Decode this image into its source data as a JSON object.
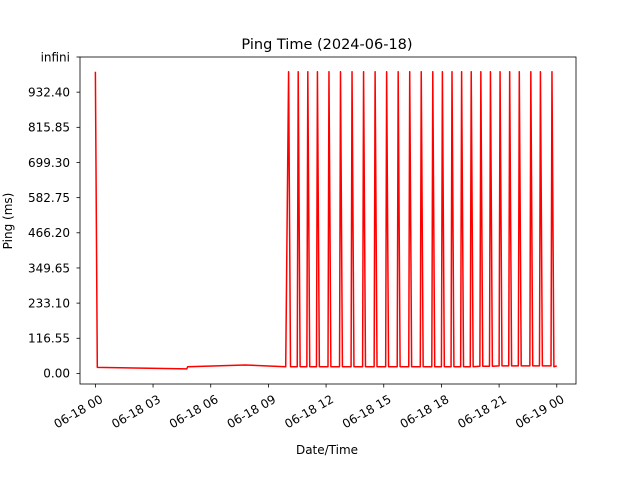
{
  "chart_data": {
    "type": "line",
    "title": "Ping Time (2024-06-18)",
    "xlabel": "Date/Time",
    "ylabel": "Ping (ms)",
    "y_ticks": [
      {
        "value": 0,
        "label": "0.00"
      },
      {
        "value": 116.55,
        "label": "116.55"
      },
      {
        "value": 233.1,
        "label": "233.10"
      },
      {
        "value": 349.65,
        "label": "349.65"
      },
      {
        "value": 466.2,
        "label": "466.20"
      },
      {
        "value": 582.75,
        "label": "582.75"
      },
      {
        "value": 699.3,
        "label": "699.30"
      },
      {
        "value": 815.85,
        "label": "815.85"
      },
      {
        "value": 932.4,
        "label": "932.40"
      },
      {
        "value": 1048.95,
        "label": "infini"
      }
    ],
    "x_ticks": [
      {
        "value": 0,
        "label": "06-18 00"
      },
      {
        "value": 3,
        "label": "06-18 03"
      },
      {
        "value": 6,
        "label": "06-18 06"
      },
      {
        "value": 9,
        "label": "06-18 09"
      },
      {
        "value": 12,
        "label": "06-18 12"
      },
      {
        "value": 15,
        "label": "06-18 15"
      },
      {
        "value": 18,
        "label": "06-18 18"
      },
      {
        "value": 21,
        "label": "06-18 21"
      },
      {
        "value": 24,
        "label": "06-19 00"
      }
    ],
    "x_unit": "hour of 2024-06-18",
    "xlim": [
      -0.8,
      25.0
    ],
    "ylim": [
      -35,
      1048.95
    ],
    "grid": false,
    "color": "#ff0000",
    "series": [
      {
        "values_note": "ping in ms; 1000 plotted for timeouts",
        "x": [
          0.0,
          0.1,
          4.75,
          4.8,
          7.8,
          9.9,
          10.05,
          10.15,
          10.5,
          10.55,
          10.65,
          11.0,
          11.05,
          11.15,
          11.5,
          11.55,
          11.65,
          12.1,
          12.15,
          12.25,
          12.7,
          12.75,
          12.85,
          13.3,
          13.35,
          13.45,
          13.9,
          13.95,
          14.05,
          14.5,
          14.55,
          14.65,
          15.1,
          15.15,
          15.25,
          15.7,
          15.75,
          15.85,
          16.3,
          16.35,
          16.45,
          16.9,
          16.95,
          17.05,
          17.5,
          17.55,
          17.65,
          18.0,
          18.05,
          18.15,
          18.5,
          18.55,
          18.65,
          19.0,
          19.05,
          19.15,
          19.5,
          19.55,
          19.65,
          20.0,
          20.05,
          20.15,
          20.5,
          20.55,
          20.65,
          21.0,
          21.05,
          21.15,
          21.5,
          21.55,
          21.65,
          22.0,
          22.05,
          22.15,
          22.6,
          22.65,
          22.75,
          23.1,
          23.15,
          23.25,
          23.7,
          23.75,
          23.85,
          24.0
        ],
        "y": [
          1000,
          20,
          15,
          22,
          28,
          22,
          1000,
          22,
          22,
          1000,
          22,
          22,
          1000,
          22,
          22,
          1000,
          22,
          22,
          1000,
          22,
          22,
          1000,
          22,
          22,
          1000,
          22,
          22,
          1000,
          22,
          22,
          1000,
          22,
          22,
          1000,
          22,
          22,
          1000,
          22,
          22,
          1000,
          22,
          22,
          1000,
          22,
          22,
          1000,
          22,
          22,
          1000,
          22,
          22,
          1000,
          22,
          22,
          1000,
          22,
          22,
          1000,
          22,
          24,
          1000,
          24,
          24,
          1000,
          24,
          25,
          1000,
          25,
          25,
          1000,
          25,
          25,
          1000,
          25,
          25,
          1000,
          25,
          25,
          1000,
          25,
          25,
          1000,
          22,
          25
        ]
      }
    ]
  }
}
